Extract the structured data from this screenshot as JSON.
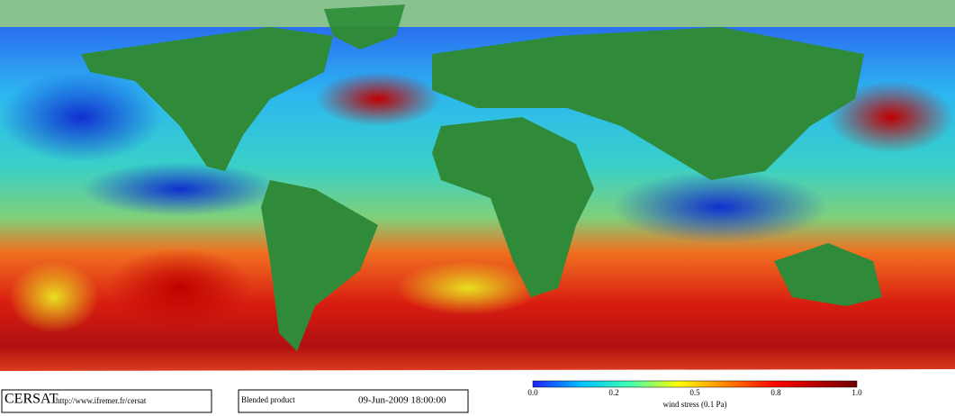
{
  "footer": {
    "logo": "CERSAT",
    "url": "http://www.ifremer.fr/cersat",
    "product": "Blended product",
    "date": "09-Jun-2009 18:00:00"
  },
  "colorbar": {
    "ticks": [
      "0.0",
      "0.2",
      "0.5",
      "0.8",
      "1.0"
    ],
    "label": "wind stress (0.1 Pa)"
  }
}
